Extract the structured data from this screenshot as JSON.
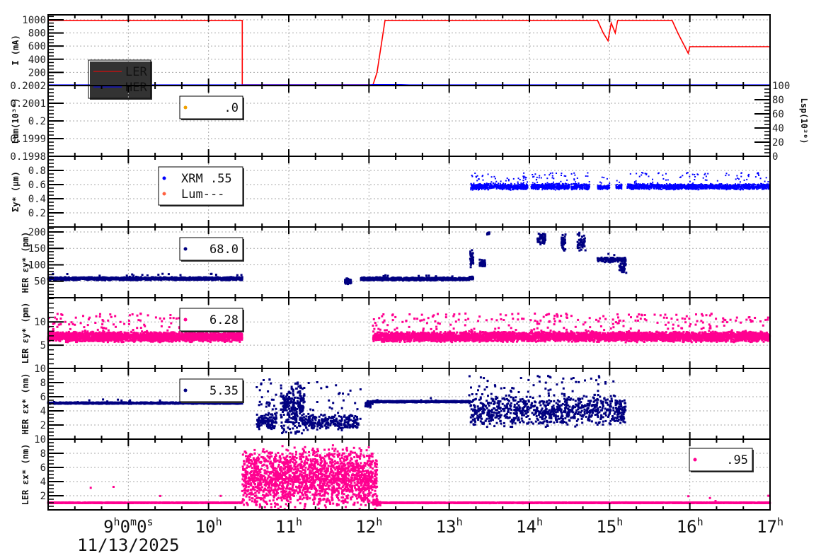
{
  "chart_data": {
    "type": "scatter",
    "x_axis": {
      "range_hours": [
        8,
        17
      ],
      "tick_hours": [
        9,
        10,
        11,
        12,
        13,
        14,
        15,
        16,
        17
      ],
      "tick_labels": [
        "9h0m0s",
        "10h",
        "11h",
        "12h",
        "13h",
        "14h",
        "15h",
        "16h",
        "17h"
      ],
      "date_label": "11/13/2025"
    },
    "panels": [
      {
        "id": "current",
        "ylabel": "I (mA)",
        "ylim": [
          0,
          1075
        ],
        "ticks": [
          200,
          400,
          600,
          800,
          1000
        ],
        "tick_labels": [
          "200",
          "400",
          "600",
          "800",
          "1000"
        ],
        "minor": 50,
        "legend": {
          "items": [
            {
              "label": "LER",
              "color": "#ff0000",
              "kind": "line"
            },
            {
              "label": "HER",
              "color": "#0000ff",
              "kind": "line"
            }
          ]
        },
        "lines": [
          {
            "name": "LER",
            "color": "#ff0000",
            "points": [
              [
                8,
                990
              ],
              [
                10.42,
                990
              ],
              [
                10.42,
                0
              ],
              [
                12.05,
                0
              ],
              [
                12.1,
                200
              ],
              [
                12.2,
                990
              ],
              [
                14.85,
                990
              ],
              [
                14.92,
                800
              ],
              [
                14.98,
                680
              ],
              [
                15.02,
                950
              ],
              [
                15.07,
                800
              ],
              [
                15.1,
                990
              ],
              [
                15.78,
                990
              ],
              [
                15.85,
                800
              ],
              [
                15.98,
                490
              ],
              [
                16.0,
                590
              ],
              [
                17,
                590
              ]
            ]
          },
          {
            "name": "HER",
            "color": "#0000ff",
            "points": [
              [
                8,
                0
              ],
              [
                11.7,
                0
              ],
              [
                11.75,
                5
              ],
              [
                12.0,
                5
              ],
              [
                12.05,
                15
              ],
              [
                12.4,
                15
              ],
              [
                12.5,
                10
              ],
              [
                13.25,
                10
              ],
              [
                13.3,
                0
              ],
              [
                14.8,
                0
              ],
              [
                14.85,
                10
              ],
              [
                15.0,
                10
              ],
              [
                15.05,
                0
              ],
              [
                15.15,
                10
              ],
              [
                15.2,
                0
              ],
              [
                17,
                0
              ]
            ]
          }
        ]
      },
      {
        "id": "luminosity",
        "ylabel": "Lum(10³⁰)",
        "ylim": [
          0.1998,
          0.2002
        ],
        "ticks": [
          0.1998,
          0.1999,
          0.2,
          0.2001,
          0.2002
        ],
        "tick_labels": [
          "0.1998",
          "0.1999",
          "0.2",
          "0.2001",
          "0.2002"
        ],
        "minor": 2e-05,
        "right_axis": {
          "label": "Lsp(10³⁰)",
          "ylim": [
            0,
            100
          ],
          "ticks": [
            0,
            20,
            40,
            60,
            80,
            100
          ],
          "tick_labels": [
            "0",
            "20",
            "40",
            "60",
            "80",
            "100"
          ]
        },
        "legend": {
          "items": [
            {
              "label": ".0",
              "color": "#f0a000",
              "kind": "dot"
            }
          ]
        },
        "scatter": []
      },
      {
        "id": "sigma-y",
        "ylabel": "Σy* (μm)",
        "ylim": [
          0,
          1.0
        ],
        "ticks": [
          0.2,
          0.4,
          0.6,
          0.8
        ],
        "tick_labels": [
          "0.2",
          "0.4",
          "0.6",
          "0.8"
        ],
        "minor": 0.05,
        "legend": {
          "items": [
            {
              "label": "XRM  .55",
              "color": "#0000ff",
              "kind": "dot"
            },
            {
              "label": "Lum---",
              "color": "#ff6040",
              "kind": "dot"
            }
          ]
        },
        "scatter": [
          {
            "color": "#0000ff",
            "size": 2,
            "segments": [
              [
                13.27,
                13.98,
                0.57,
                0.05,
                600,
                0.1,
                0.2
              ],
              [
                14.02,
                14.5,
                0.57,
                0.05,
                450,
                0.1,
                0.2
              ],
              [
                14.52,
                14.75,
                0.57,
                0.05,
                200,
                0.1,
                0.2
              ],
              [
                14.85,
                15.0,
                0.56,
                0.04,
                120,
                0.08,
                0.15
              ],
              [
                15.08,
                15.15,
                0.57,
                0.04,
                60,
                0.05,
                0.15
              ],
              [
                15.22,
                17,
                0.57,
                0.045,
                1600,
                0.08,
                0.2
              ]
            ]
          }
        ]
      },
      {
        "id": "her-emit-y",
        "ylabel": "HER εy* (pm)",
        "ylim": [
          0,
          215
        ],
        "ticks": [
          50,
          100,
          150,
          200
        ],
        "tick_labels": [
          "50",
          "100",
          "150",
          "200"
        ],
        "minor": 10,
        "legend": {
          "items": [
            {
              "label": "68.0",
              "color": "#000080",
              "kind": "dot"
            }
          ]
        },
        "scatter": [
          {
            "color": "#000080",
            "size": 3,
            "segments": [
              [
                8,
                10.42,
                58,
                5,
                1400,
                0.03,
                15
              ],
              [
                11.7,
                11.78,
                50,
                10,
                60,
                0,
                0
              ],
              [
                11.9,
                13.25,
                57,
                5,
                900,
                0.03,
                12
              ],
              [
                13.25,
                13.3,
                60,
                5,
                40,
                0,
                0
              ],
              [
                13.26,
                13.3,
                120,
                30,
                40,
                0,
                0
              ],
              [
                13.38,
                13.45,
                105,
                12,
                50,
                0,
                0
              ],
              [
                13.47,
                13.5,
                195,
                5,
                15,
                0,
                0
              ],
              [
                14.1,
                14.2,
                180,
                20,
                50,
                0,
                0
              ],
              [
                14.4,
                14.45,
                170,
                30,
                40,
                0,
                0
              ],
              [
                14.6,
                14.7,
                165,
                35,
                40,
                0,
                0
              ],
              [
                14.85,
                15.2,
                115,
                8,
                120,
                0.05,
                30
              ],
              [
                15.12,
                15.22,
                90,
                25,
                40,
                0,
                0
              ]
            ]
          }
        ]
      },
      {
        "id": "ler-emit-y",
        "ylabel": "LER εy* (pm)",
        "ylim": [
          0,
          15.2
        ],
        "ticks": [
          5,
          10
        ],
        "tick_labels": [
          "5",
          "10"
        ],
        "minor": 1,
        "legend": {
          "items": [
            {
              "label": "6.28",
              "color": "#ff0090",
              "kind": "dot"
            }
          ]
        },
        "scatter": [
          {
            "color": "#ff0090",
            "size": 3,
            "segments": [
              [
                8,
                10.42,
                6.8,
                1.2,
                2200,
                0.08,
                5
              ],
              [
                12.05,
                17,
                6.8,
                1.2,
                4200,
                0.08,
                5
              ]
            ]
          }
        ]
      },
      {
        "id": "her-emit-x",
        "ylabel": "HER εx* (nm)",
        "ylim": [
          0,
          10
        ],
        "ticks": [
          2,
          4,
          6,
          8,
          10
        ],
        "tick_labels": [
          "2",
          "4",
          "6",
          "8",
          "10"
        ],
        "minor": 0.5,
        "legend": {
          "items": [
            {
              "label": "5.35",
              "color": "#000080",
              "kind": "dot"
            }
          ]
        },
        "scatter": [
          {
            "color": "#000080",
            "size": 3,
            "segments": [
              [
                8,
                10.42,
                5.1,
                0.12,
                1200,
                0.01,
                0.6
              ],
              [
                10.6,
                10.85,
                2.6,
                1.2,
                150,
                0.25,
                6
              ],
              [
                10.9,
                11.2,
                4.5,
                4,
                260,
                0,
                0
              ],
              [
                11.2,
                11.9,
                2.4,
                1.2,
                250,
                0.15,
                6
              ],
              [
                11.95,
                12.05,
                5.0,
                0.6,
                40,
                0,
                0
              ],
              [
                12.05,
                13.25,
                5.3,
                0.12,
                700,
                0.01,
                0.5
              ],
              [
                13.25,
                15.2,
                4.0,
                2.5,
                900,
                0.12,
                5
              ]
            ]
          }
        ]
      },
      {
        "id": "ler-emit-x",
        "ylabel": "LER εx* (nm)",
        "ylim": [
          0,
          10
        ],
        "ticks": [
          2,
          4,
          6,
          8,
          10
        ],
        "tick_labels": [
          "2",
          "4",
          "6",
          "8",
          "10"
        ],
        "minor": 0.5,
        "legend": {
          "items": [
            {
              "label": ".95",
              "color": "#ff0090",
              "kind": "dot"
            }
          ]
        },
        "scatter": [
          {
            "color": "#ff0090",
            "size": 3,
            "segments": [
              [
                8,
                10.42,
                1.0,
                0.06,
                1100,
                0.005,
                3
              ],
              [
                10.42,
                12.1,
                4.6,
                4.6,
                2000,
                0,
                0
              ],
              [
                12.05,
                12.15,
                1.0,
                0.5,
                40,
                0,
                0
              ],
              [
                12.15,
                17,
                1.0,
                0.06,
                2200,
                0.003,
                1
              ]
            ]
          }
        ]
      }
    ]
  }
}
